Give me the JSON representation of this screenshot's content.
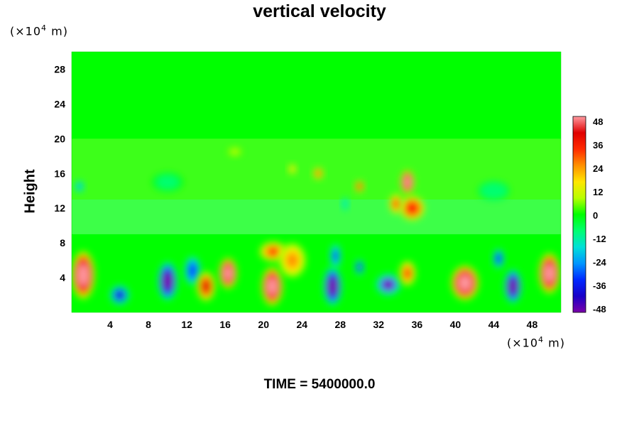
{
  "chart_data": {
    "type": "heatmap",
    "title": "vertical velocity",
    "ylabel": "Height",
    "xlabel": "",
    "x_unit_base": "(×10",
    "x_unit_exp": "4",
    "x_unit_tail": " m)",
    "y_unit_base": "(×10",
    "y_unit_exp": "4",
    "y_unit_tail": " m)",
    "xlim": [
      0,
      51
    ],
    "ylim": [
      0,
      30
    ],
    "x_ticks": [
      4,
      8,
      12,
      16,
      20,
      24,
      28,
      32,
      36,
      40,
      44,
      48
    ],
    "y_ticks": [
      4,
      8,
      12,
      16,
      20,
      24,
      28
    ],
    "colorbar": {
      "ticks": [
        48,
        36,
        24,
        12,
        0,
        -12,
        -24,
        -36,
        -48
      ],
      "range": [
        -50,
        50
      ],
      "colors": [
        "#7a00a8",
        "#1800c8",
        "#0028ff",
        "#0096ff",
        "#00e0d8",
        "#00ff70",
        "#00ff00",
        "#b8ff00",
        "#ffe600",
        "#ff9000",
        "#ff2a00",
        "#e00000",
        "#ff9aa0"
      ]
    },
    "features": [
      {
        "x": 1.2,
        "y": 4.3,
        "w": 2.2,
        "h": 5.0,
        "v": 48
      },
      {
        "x": 5.0,
        "y": 2.0,
        "w": 1.8,
        "h": 2.0,
        "v": -44
      },
      {
        "x": 10.0,
        "y": 3.6,
        "w": 1.8,
        "h": 4.0,
        "v": -48
      },
      {
        "x": 12.6,
        "y": 4.8,
        "w": 1.5,
        "h": 3.0,
        "v": -34
      },
      {
        "x": 14.0,
        "y": 3.0,
        "w": 1.7,
        "h": 3.0,
        "v": 40
      },
      {
        "x": 16.3,
        "y": 4.5,
        "w": 1.7,
        "h": 3.2,
        "v": 48
      },
      {
        "x": 20.9,
        "y": 3.0,
        "w": 2.0,
        "h": 4.0,
        "v": 48
      },
      {
        "x": 21.0,
        "y": 7.0,
        "w": 2.5,
        "h": 2.0,
        "v": 30
      },
      {
        "x": 23.0,
        "y": 6.0,
        "w": 2.5,
        "h": 3.5,
        "v": 24
      },
      {
        "x": 27.2,
        "y": 3.0,
        "w": 1.7,
        "h": 4.0,
        "v": -48
      },
      {
        "x": 27.5,
        "y": 6.5,
        "w": 1.0,
        "h": 2.5,
        "v": -30
      },
      {
        "x": 30.0,
        "y": 5.2,
        "w": 0.8,
        "h": 1.6,
        "v": -40
      },
      {
        "x": 33.0,
        "y": 3.2,
        "w": 2.3,
        "h": 2.2,
        "v": -46
      },
      {
        "x": 35.0,
        "y": 4.5,
        "w": 1.5,
        "h": 2.5,
        "v": 30
      },
      {
        "x": 41.0,
        "y": 3.4,
        "w": 2.6,
        "h": 3.6,
        "v": 48
      },
      {
        "x": 44.5,
        "y": 6.2,
        "w": 1.0,
        "h": 2.0,
        "v": -36
      },
      {
        "x": 46.0,
        "y": 3.0,
        "w": 1.6,
        "h": 3.5,
        "v": -48
      },
      {
        "x": 49.8,
        "y": 4.5,
        "w": 2.0,
        "h": 4.2,
        "v": 48
      },
      {
        "x": 35.0,
        "y": 15.0,
        "w": 1.3,
        "h": 2.5,
        "v": 48
      },
      {
        "x": 35.5,
        "y": 12.0,
        "w": 2.3,
        "h": 2.5,
        "v": 36
      },
      {
        "x": 33.8,
        "y": 12.5,
        "w": 1.2,
        "h": 2.0,
        "v": 30
      },
      {
        "x": 25.7,
        "y": 16.0,
        "w": 0.9,
        "h": 1.2,
        "v": 30
      },
      {
        "x": 23.0,
        "y": 16.5,
        "w": 0.7,
        "h": 1.0,
        "v": 20
      },
      {
        "x": 30.0,
        "y": 14.5,
        "w": 0.8,
        "h": 1.2,
        "v": 36
      },
      {
        "x": 28.5,
        "y": 12.5,
        "w": 0.6,
        "h": 1.5,
        "v": -20
      },
      {
        "x": 0.8,
        "y": 14.5,
        "w": 0.8,
        "h": 1.2,
        "v": -24
      },
      {
        "x": 17.0,
        "y": 18.5,
        "w": 1.5,
        "h": 1.0,
        "v": 8
      },
      {
        "x": 44.0,
        "y": 14.0,
        "w": 3.0,
        "h": 2.0,
        "v": -12
      },
      {
        "x": 10.0,
        "y": 15.0,
        "w": 3.0,
        "h": 2.0,
        "v": -8
      }
    ]
  },
  "footer_text": "TIME = 5400000.0"
}
